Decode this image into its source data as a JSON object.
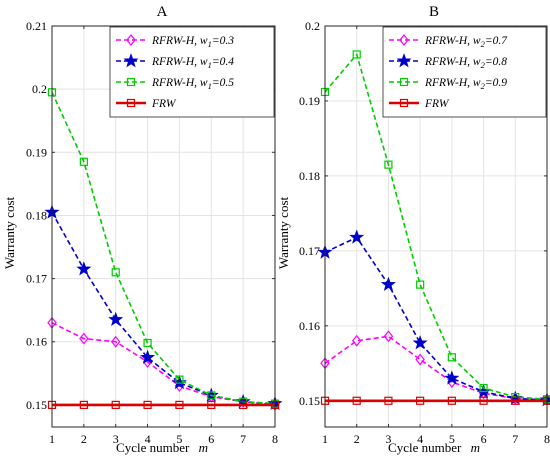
{
  "chart_data": [
    {
      "type": "line",
      "title": "A",
      "xlabel": "Cycle number",
      "xlabel_var": "m",
      "ylabel": "Warranty cost",
      "x": [
        1,
        2,
        3,
        4,
        5,
        6,
        7,
        8
      ],
      "xlim": [
        1,
        8
      ],
      "ylim": [
        0.1465,
        0.21
      ],
      "yticks": [
        0.15,
        0.16,
        0.17,
        0.18,
        0.19,
        0.2,
        0.21
      ],
      "ytick_labels": [
        "0.15",
        "0.16",
        "0.17",
        "0.18",
        "0.19",
        "0.2",
        "0.21"
      ],
      "grid": true,
      "legend": "top-right",
      "series": [
        {
          "name": "RFRW-H, w",
          "sub": "1",
          "eq": "=0.3",
          "color": "#ff00ff",
          "marker": "diamond",
          "dashed": true,
          "values": [
            0.163,
            0.1605,
            0.16,
            0.1568,
            0.153,
            0.1513,
            0.1505,
            0.15
          ]
        },
        {
          "name": "RFRW-H, w",
          "sub": "1",
          "eq": "=0.4",
          "color": "#0000cc",
          "marker": "star",
          "dashed": true,
          "values": [
            0.1805,
            0.1715,
            0.1635,
            0.1575,
            0.1535,
            0.1515,
            0.1505,
            0.1502
          ]
        },
        {
          "name": "RFRW-H, w",
          "sub": "1",
          "eq": "=0.5",
          "color": "#00cc00",
          "marker": "square",
          "dashed": true,
          "values": [
            0.1995,
            0.1885,
            0.171,
            0.1598,
            0.154,
            0.1515,
            0.1505,
            0.1502
          ]
        },
        {
          "name": "FRW",
          "sub": "",
          "eq": "",
          "color": "#dd0000",
          "marker": "square",
          "dashed": false,
          "values": [
            0.15,
            0.15,
            0.15,
            0.15,
            0.15,
            0.15,
            0.15,
            0.15
          ]
        }
      ]
    },
    {
      "type": "line",
      "title": "B",
      "xlabel": "Cycle number",
      "xlabel_var": "m",
      "ylabel": "Warranty cost",
      "x": [
        1,
        2,
        3,
        4,
        5,
        6,
        7,
        8
      ],
      "xlim": [
        1,
        8
      ],
      "ylim": [
        0.1465,
        0.2
      ],
      "yticks": [
        0.15,
        0.16,
        0.17,
        0.18,
        0.19,
        0.2
      ],
      "ytick_labels": [
        "0.15",
        "0.16",
        "0.17",
        "0.18",
        "0.19",
        "0.2"
      ],
      "grid": true,
      "legend": "top-right",
      "series": [
        {
          "name": "RFRW-H, w",
          "sub": "2",
          "eq": "=0.7",
          "color": "#ff00ff",
          "marker": "diamond",
          "dashed": true,
          "values": [
            0.155,
            0.158,
            0.1586,
            0.1555,
            0.1525,
            0.151,
            0.1503,
            0.1501
          ]
        },
        {
          "name": "RFRW-H, w",
          "sub": "2",
          "eq": "=0.8",
          "color": "#0000cc",
          "marker": "star",
          "dashed": true,
          "values": [
            0.1698,
            0.1718,
            0.1655,
            0.1577,
            0.153,
            0.1512,
            0.1503,
            0.1501
          ]
        },
        {
          "name": "RFRW-H, w",
          "sub": "2",
          "eq": "=0.9",
          "color": "#00cc00",
          "marker": "square",
          "dashed": true,
          "values": [
            0.1912,
            0.1962,
            0.1815,
            0.1655,
            0.1558,
            0.1517,
            0.1505,
            0.1502
          ]
        },
        {
          "name": "FRW",
          "sub": "",
          "eq": "",
          "color": "#dd0000",
          "marker": "square",
          "dashed": false,
          "values": [
            0.15,
            0.15,
            0.15,
            0.15,
            0.15,
            0.15,
            0.15,
            0.15
          ]
        }
      ]
    }
  ]
}
